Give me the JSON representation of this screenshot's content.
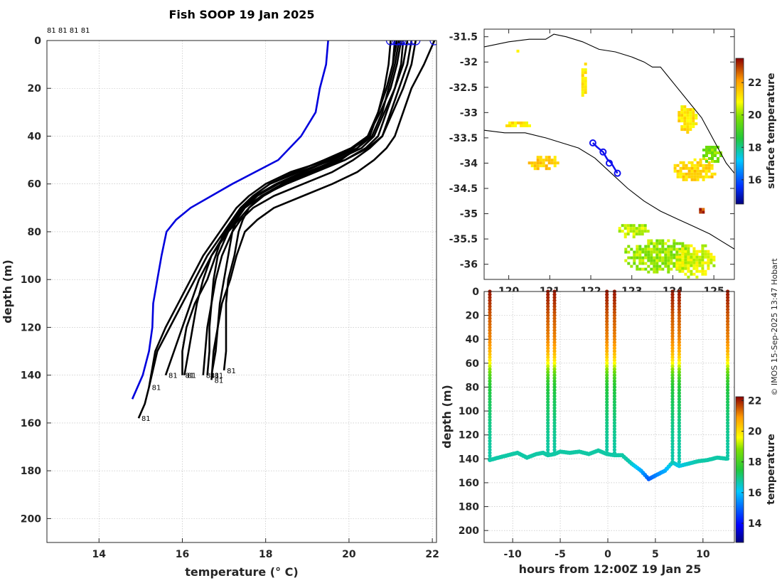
{
  "title": "Fish SOOP 19 Jan 2025",
  "watermark": "© IMOS 15-Sep-2025 13:47 Hobart",
  "chart_data": [
    {
      "id": "profiles",
      "type": "line",
      "title": "Fish SOOP 19 Jan 2025",
      "xlabel": "temperature (° C)",
      "ylabel": "depth (m)",
      "xlim": [
        12.75,
        22.1
      ],
      "ylim": [
        210,
        0
      ],
      "xticks": [
        14,
        16,
        18,
        20,
        22
      ],
      "yticks": [
        0,
        20,
        40,
        60,
        80,
        100,
        120,
        140,
        160,
        180,
        200
      ],
      "profile_label": "81",
      "top_labels": "81 81 81 81",
      "climatology": {
        "name": "climatology",
        "color": "#0000dd",
        "depth": [
          0,
          10,
          20,
          30,
          40,
          50,
          60,
          70,
          75,
          80,
          90,
          100,
          110,
          120,
          130,
          140,
          150
        ],
        "temp": [
          19.5,
          19.45,
          19.3,
          19.2,
          18.85,
          18.3,
          17.2,
          16.2,
          15.85,
          15.62,
          15.5,
          15.4,
          15.3,
          15.28,
          15.2,
          15.05,
          14.8
        ]
      },
      "profiles": [
        {
          "name": "cast 1",
          "depth": [
            0,
            10,
            20,
            30,
            40,
            45,
            50,
            55,
            60,
            65,
            70,
            75,
            80,
            90,
            100,
            110,
            120,
            130,
            138
          ],
          "temp": [
            21.1,
            21.05,
            20.9,
            20.7,
            20.5,
            20.2,
            19.8,
            19.1,
            18.4,
            17.9,
            17.6,
            17.45,
            17.35,
            17.25,
            17.1,
            17.05,
            17.05,
            17.05,
            17.0
          ]
        },
        {
          "name": "cast 2",
          "depth": [
            0,
            10,
            20,
            30,
            40,
            45,
            50,
            55,
            60,
            65,
            70,
            75,
            80,
            90,
            100,
            110,
            120,
            130,
            140
          ],
          "temp": [
            21.3,
            21.25,
            21.1,
            20.9,
            20.7,
            20.4,
            19.9,
            19.2,
            18.5,
            17.9,
            17.5,
            17.3,
            17.2,
            17.1,
            17.0,
            16.9,
            16.85,
            16.8,
            16.7
          ]
        },
        {
          "name": "cast 3",
          "depth": [
            0,
            10,
            20,
            30,
            40,
            45,
            50,
            55,
            60,
            65,
            70,
            75,
            80,
            90,
            100,
            110,
            120,
            130,
            140
          ],
          "temp": [
            21.5,
            21.4,
            21.2,
            21.0,
            20.8,
            20.5,
            20.1,
            19.6,
            18.9,
            18.2,
            17.7,
            17.4,
            17.2,
            16.95,
            16.8,
            16.7,
            16.6,
            16.55,
            16.5
          ]
        },
        {
          "name": "cast 4",
          "depth": [
            0,
            10,
            20,
            30,
            40,
            45,
            50,
            55,
            60,
            65,
            70,
            75,
            80,
            90,
            100,
            110,
            120,
            130,
            142
          ],
          "temp": [
            22.05,
            21.8,
            21.5,
            21.3,
            21.1,
            20.9,
            20.6,
            20.2,
            19.6,
            18.9,
            18.2,
            17.8,
            17.5,
            17.3,
            17.15,
            16.95,
            16.85,
            16.75,
            16.7
          ]
        },
        {
          "name": "cast 5",
          "depth": [
            0,
            10,
            20,
            30,
            40,
            45,
            50,
            55,
            60,
            65,
            70,
            75,
            80,
            90,
            100,
            110,
            120,
            130,
            140
          ],
          "temp": [
            21.2,
            21.1,
            20.95,
            20.8,
            20.55,
            20.2,
            19.6,
            18.8,
            18.1,
            17.7,
            17.4,
            17.2,
            17.0,
            16.8,
            16.6,
            16.3,
            16.1,
            16.0,
            16.0
          ]
        },
        {
          "name": "cast 6",
          "depth": [
            0,
            10,
            20,
            30,
            40,
            45,
            50,
            55,
            60,
            65,
            70,
            75,
            80,
            90,
            100,
            110,
            120,
            130,
            140
          ],
          "temp": [
            21.4,
            21.3,
            21.1,
            20.85,
            20.6,
            20.3,
            19.7,
            19.0,
            18.3,
            17.8,
            17.5,
            17.3,
            17.1,
            16.7,
            16.4,
            16.2,
            16.0,
            15.8,
            15.6
          ]
        },
        {
          "name": "cast 7",
          "depth": [
            0,
            10,
            20,
            30,
            40,
            45,
            50,
            55,
            60,
            65,
            70,
            75,
            80,
            90,
            100,
            110,
            120,
            130,
            145
          ],
          "temp": [
            21.0,
            20.95,
            20.85,
            20.7,
            20.5,
            20.1,
            19.5,
            18.6,
            18.0,
            17.6,
            17.3,
            17.1,
            16.9,
            16.5,
            16.2,
            15.9,
            15.6,
            15.35,
            15.2
          ]
        },
        {
          "name": "cast 8",
          "depth": [
            0,
            10,
            20,
            30,
            40,
            45,
            50,
            55,
            60,
            65,
            70,
            75,
            80,
            90,
            100,
            110,
            120,
            130,
            145,
            152,
            158
          ],
          "temp": [
            21.25,
            21.15,
            21.0,
            20.75,
            20.45,
            20.05,
            19.4,
            18.7,
            18.1,
            17.7,
            17.4,
            17.2,
            17.0,
            16.6,
            16.3,
            16.0,
            15.7,
            15.4,
            15.2,
            15.1,
            14.95
          ]
        },
        {
          "name": "cast 9",
          "depth": [
            0,
            10,
            20,
            30,
            40,
            45,
            50,
            55,
            60,
            65,
            70,
            75,
            80,
            90,
            100,
            110,
            120,
            130,
            140
          ],
          "temp": [
            21.6,
            21.5,
            21.3,
            21.05,
            20.8,
            20.45,
            19.9,
            19.1,
            18.45,
            17.95,
            17.6,
            17.35,
            17.1,
            16.85,
            16.75,
            16.7,
            16.65,
            16.65,
            16.6
          ]
        },
        {
          "name": "cast 10",
          "depth": [
            0,
            10,
            20,
            30,
            40,
            45,
            50,
            55,
            60,
            65,
            70,
            75,
            80,
            90,
            100,
            110,
            120,
            130,
            140
          ],
          "temp": [
            21.15,
            21.05,
            20.9,
            20.7,
            20.45,
            20.1,
            19.55,
            18.9,
            18.25,
            17.75,
            17.45,
            17.25,
            17.05,
            16.7,
            16.5,
            16.35,
            16.25,
            16.15,
            16.05
          ]
        }
      ]
    },
    {
      "id": "sst_map",
      "type": "heatmap",
      "xlim": [
        119.4,
        125.5
      ],
      "ylim": [
        -36.3,
        -31.35
      ],
      "xticks": [
        120,
        121,
        122,
        123,
        124,
        125
      ],
      "yticks": [
        -31.5,
        -32,
        -32.5,
        -33,
        -33.5,
        -34,
        -34.5,
        -35,
        -35.5,
        -36
      ],
      "colorbar_label": "surface temperature",
      "colorbar_range": [
        14.5,
        23.5
      ],
      "colorbar_ticks": [
        16,
        18,
        20,
        22
      ],
      "track": {
        "lon": [
          122.05,
          122.15,
          122.3,
          122.4,
          122.5,
          122.65
        ],
        "lat": [
          -33.6,
          -33.68,
          -33.78,
          -33.92,
          -34.0,
          -34.2
        ],
        "markers": [
          [
            122.05,
            -33.6
          ],
          [
            122.3,
            -33.78
          ],
          [
            122.45,
            -34.0
          ],
          [
            122.65,
            -34.2
          ]
        ]
      },
      "coast": {
        "lon": [
          119.4,
          120.0,
          120.5,
          120.9,
          121.1,
          121.4,
          121.8,
          122.2,
          122.6,
          123.0,
          123.3,
          123.5,
          123.7,
          123.9,
          124.1,
          124.4,
          124.7,
          124.9,
          125.1,
          125.3,
          125.5
        ],
        "lat": [
          -31.7,
          -31.6,
          -31.55,
          -31.55,
          -31.45,
          -31.5,
          -31.6,
          -31.75,
          -31.8,
          -31.9,
          -32.0,
          -32.1,
          -32.1,
          -32.3,
          -32.5,
          -32.8,
          -33.1,
          -33.4,
          -33.7,
          -34.0,
          -34.2
        ]
      },
      "shelf": {
        "lon": [
          119.4,
          119.9,
          120.4,
          120.9,
          121.3,
          121.7,
          122.1,
          122.5,
          122.9,
          123.3,
          123.7,
          124.1,
          124.5,
          124.9,
          125.2,
          125.5
        ],
        "lat": [
          -33.35,
          -33.4,
          -33.4,
          -33.5,
          -33.6,
          -33.7,
          -33.9,
          -34.2,
          -34.5,
          -34.75,
          -34.95,
          -35.1,
          -35.25,
          -35.4,
          -35.55,
          -35.7
        ]
      },
      "patches": [
        {
          "lon": 124.3,
          "lat": -33.1,
          "rx": 0.25,
          "ry": 0.3,
          "value": 21.3
        },
        {
          "lon": 124.5,
          "lat": -34.1,
          "rx": 0.55,
          "ry": 0.25,
          "value": 21.5
        },
        {
          "lon": 124.9,
          "lat": -33.8,
          "rx": 0.25,
          "ry": 0.2,
          "value": 20.2
        },
        {
          "lon": 124.65,
          "lat": -34.95,
          "rx": 0.08,
          "ry": 0.12,
          "value": 23.0
        },
        {
          "lon": 120.2,
          "lat": -33.2,
          "rx": 0.35,
          "ry": 0.08,
          "value": 21.3
        },
        {
          "lon": 120.8,
          "lat": -33.95,
          "rx": 0.4,
          "ry": 0.15,
          "value": 21.6
        },
        {
          "lon": 121.8,
          "lat": -32.3,
          "rx": 0.1,
          "ry": 0.4,
          "value": 21.3
        },
        {
          "lon": 120.2,
          "lat": -31.75,
          "rx": 0.08,
          "ry": 0.05,
          "value": 21.5
        },
        {
          "lon": 123.0,
          "lat": -35.3,
          "rx": 0.4,
          "ry": 0.15,
          "value": 20.6
        },
        {
          "lon": 123.6,
          "lat": -35.8,
          "rx": 0.85,
          "ry": 0.35,
          "value": 20.4
        },
        {
          "lon": 124.5,
          "lat": -35.9,
          "rx": 0.5,
          "ry": 0.35,
          "value": 20.8
        }
      ]
    },
    {
      "id": "depth_time",
      "type": "scatter",
      "xlabel": "hours from 12:00Z 19 Jan 25",
      "ylabel": "depth (m)",
      "xlim": [
        -13,
        13.3
      ],
      "ylim": [
        210,
        0
      ],
      "xticks": [
        -10,
        -5,
        0,
        5,
        10
      ],
      "yticks": [
        0,
        20,
        40,
        60,
        80,
        100,
        120,
        140,
        160,
        180,
        200
      ],
      "colorbar_label": "temperature",
      "colorbar_range": [
        12.75,
        22.25
      ],
      "colorbar_ticks": [
        14,
        16,
        18,
        20,
        22
      ],
      "profile_hours": [
        -12.4,
        -6.3,
        -5.6,
        -0.1,
        0.7,
        6.8,
        7.5,
        12.6
      ],
      "bottom_track": {
        "hours": [
          -12.4,
          -11.5,
          -10.5,
          -9.5,
          -8.5,
          -7.5,
          -6.8,
          -6.3,
          -5.6,
          -5.0,
          -4.0,
          -3.0,
          -2.0,
          -1.0,
          -0.1,
          0.7,
          1.5,
          2.5,
          3.5,
          4.3,
          5.0,
          6.0,
          6.8,
          7.5,
          8.5,
          9.5,
          10.5,
          11.5,
          12.6
        ],
        "depth": [
          141,
          139,
          137,
          135,
          139,
          136,
          135,
          137,
          136,
          134,
          135,
          134,
          136,
          133,
          136,
          137,
          137,
          144,
          150,
          157,
          154,
          150,
          143,
          146,
          144,
          142,
          141,
          139,
          140
        ]
      }
    }
  ]
}
